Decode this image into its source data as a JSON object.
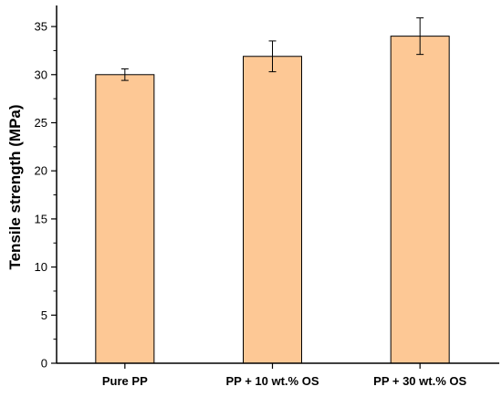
{
  "chart_data": {
    "type": "bar",
    "title": "",
    "xlabel": "",
    "ylabel": "Tensile strength (MPa)",
    "categories": [
      "Pure PP",
      "PP + 10 wt.% OS",
      "PP + 30 wt.% OS"
    ],
    "values": [
      30.0,
      31.9,
      34.0
    ],
    "errors": [
      0.6,
      1.6,
      1.9
    ],
    "ylim": [
      0,
      37
    ],
    "yticks": [
      0,
      5,
      10,
      15,
      20,
      25,
      30,
      35
    ],
    "grid": false,
    "legend": "none",
    "bar_color": "#FDC895",
    "bar_edge_color": "#000000"
  }
}
